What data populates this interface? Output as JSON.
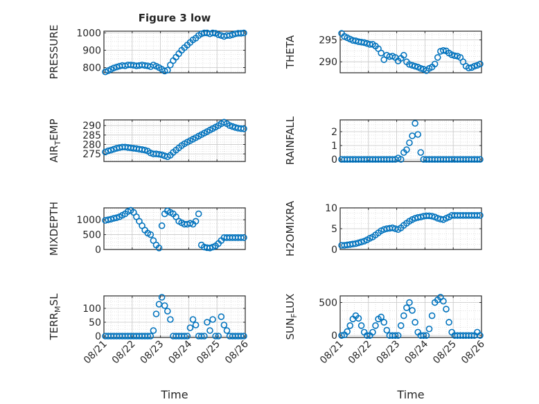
{
  "title": "Figure 3 low",
  "colors": {
    "marker": "#0072BD",
    "axis": "#262626",
    "grid": "#d9d9d9"
  },
  "chart_data": [
    {
      "type": "scatter",
      "ylabel": "PRESSURE",
      "xlabel": "",
      "xlim": [
        0,
        5
      ],
      "ylim": [
        770,
        1010
      ],
      "yticks": [
        800,
        900,
        1000
      ],
      "xticks": [],
      "x": [
        0.05,
        0.15,
        0.25,
        0.35,
        0.45,
        0.55,
        0.65,
        0.75,
        0.85,
        0.95,
        1.05,
        1.15,
        1.25,
        1.35,
        1.45,
        1.55,
        1.65,
        1.75,
        1.85,
        1.95,
        2.05,
        2.15,
        2.25,
        2.35,
        2.45,
        2.55,
        2.65,
        2.75,
        2.85,
        2.95,
        3.05,
        3.15,
        3.25,
        3.35,
        3.45,
        3.55,
        3.65,
        3.75,
        3.85,
        3.95,
        4.05,
        4.15,
        4.25,
        4.35,
        4.45,
        4.55,
        4.65,
        4.75,
        4.85,
        4.95
      ],
      "y": [
        775,
        782,
        790,
        798,
        803,
        808,
        812,
        810,
        815,
        815,
        813,
        810,
        812,
        815,
        812,
        810,
        805,
        815,
        808,
        800,
        790,
        780,
        785,
        815,
        840,
        860,
        880,
        900,
        915,
        930,
        945,
        960,
        970,
        985,
        995,
        1000,
        1000,
        995,
        1000,
        998,
        990,
        985,
        980,
        985,
        985,
        990,
        995,
        998,
        998,
        1000
      ]
    },
    {
      "type": "scatter",
      "ylabel": "THETA",
      "xlabel": "",
      "xlim": [
        0,
        5
      ],
      "ylim": [
        287.5,
        297
      ],
      "yticks": [
        290,
        295
      ],
      "xticks": [],
      "x": [
        0.05,
        0.15,
        0.25,
        0.35,
        0.45,
        0.55,
        0.65,
        0.75,
        0.85,
        0.95,
        1.05,
        1.15,
        1.25,
        1.35,
        1.45,
        1.55,
        1.65,
        1.75,
        1.85,
        1.95,
        2.05,
        2.15,
        2.25,
        2.35,
        2.45,
        2.55,
        2.65,
        2.75,
        2.85,
        2.95,
        3.05,
        3.15,
        3.25,
        3.35,
        3.45,
        3.55,
        3.65,
        3.75,
        3.85,
        3.95,
        4.05,
        4.15,
        4.25,
        4.35,
        4.45,
        4.55,
        4.65,
        4.75,
        4.85,
        4.95
      ],
      "y": [
        296.5,
        295.8,
        295.5,
        295.2,
        294.9,
        294.8,
        294.6,
        294.5,
        294.4,
        294.2,
        294,
        294,
        293.6,
        293,
        292,
        290.5,
        291.5,
        291.2,
        291.3,
        291,
        290.2,
        290.8,
        291.5,
        290,
        289.4,
        289.2,
        289,
        288.8,
        288.5,
        288.3,
        288,
        288.5,
        288.8,
        289.5,
        291,
        292.4,
        292.6,
        292.5,
        292,
        291.6,
        291.4,
        291.3,
        291,
        290,
        289,
        288.6,
        288.7,
        289,
        289.2,
        289.5
      ]
    },
    {
      "type": "scatter",
      "ylabel": "AIR_TEMP",
      "xlabel": "",
      "xlim": [
        0,
        5
      ],
      "ylim": [
        271,
        293
      ],
      "yticks": [
        275,
        280,
        285,
        290
      ],
      "xticks": [],
      "x": [
        0.05,
        0.15,
        0.25,
        0.35,
        0.45,
        0.55,
        0.65,
        0.75,
        0.85,
        0.95,
        1.05,
        1.15,
        1.25,
        1.35,
        1.45,
        1.55,
        1.65,
        1.75,
        1.85,
        1.95,
        2.05,
        2.15,
        2.25,
        2.35,
        2.45,
        2.55,
        2.65,
        2.75,
        2.85,
        2.95,
        3.05,
        3.15,
        3.25,
        3.35,
        3.45,
        3.55,
        3.65,
        3.75,
        3.85,
        3.95,
        4.05,
        4.15,
        4.25,
        4.35,
        4.45,
        4.55,
        4.65,
        4.75,
        4.85,
        4.95
      ],
      "y": [
        276,
        276.6,
        277,
        277.5,
        278,
        278.3,
        278.6,
        278.6,
        278.4,
        278.2,
        278,
        277.8,
        277.5,
        277.3,
        277,
        276.5,
        275.5,
        275,
        275,
        274.8,
        274.5,
        274,
        273.5,
        274.3,
        275.8,
        277,
        278.2,
        279.4,
        280.4,
        281.2,
        282,
        282.8,
        283.6,
        284.4,
        285.2,
        286,
        286.8,
        287.6,
        288.4,
        289.2,
        290,
        291,
        291.8,
        291,
        290,
        289.5,
        289,
        288.6,
        288.4,
        288.3
      ]
    },
    {
      "type": "scatter",
      "ylabel": "RAINFALL",
      "xlabel": "",
      "xlim": [
        0,
        5
      ],
      "ylim": [
        -0.15,
        2.85
      ],
      "yticks": [
        0,
        1,
        2
      ],
      "xticks": [],
      "x": [
        0.05,
        0.15,
        0.25,
        0.35,
        0.45,
        0.55,
        0.65,
        0.75,
        0.85,
        0.95,
        1.05,
        1.15,
        1.25,
        1.35,
        1.45,
        1.55,
        1.65,
        1.75,
        1.85,
        1.95,
        2.05,
        2.15,
        2.25,
        2.35,
        2.45,
        2.55,
        2.65,
        2.75,
        2.85,
        2.95,
        3.05,
        3.15,
        3.25,
        3.35,
        3.45,
        3.55,
        3.65,
        3.75,
        3.85,
        3.95,
        4.05,
        4.15,
        4.25,
        4.35,
        4.45,
        4.55,
        4.65,
        4.75,
        4.85,
        4.95
      ],
      "y": [
        0,
        0,
        0,
        0,
        0,
        0,
        0,
        0,
        0,
        0,
        0,
        0,
        0,
        0,
        0,
        0,
        0,
        0,
        0,
        0,
        0.1,
        0,
        0.5,
        0.7,
        1.2,
        1.7,
        2.6,
        1.8,
        0.5,
        0,
        0,
        0,
        0,
        0,
        0,
        0,
        0,
        0,
        0,
        0,
        0,
        0,
        0,
        0,
        0,
        0,
        0,
        0,
        0,
        0
      ]
    },
    {
      "type": "scatter",
      "ylabel": "MIXDEPTH",
      "xlabel": "",
      "xlim": [
        0,
        5
      ],
      "ylim": [
        0,
        1400
      ],
      "yticks": [
        0,
        500,
        1000
      ],
      "xticks": [],
      "x": [
        0.05,
        0.15,
        0.25,
        0.35,
        0.45,
        0.55,
        0.65,
        0.75,
        0.85,
        0.95,
        1.05,
        1.15,
        1.25,
        1.35,
        1.45,
        1.55,
        1.65,
        1.75,
        1.85,
        1.95,
        2.05,
        2.15,
        2.25,
        2.35,
        2.45,
        2.55,
        2.65,
        2.75,
        2.85,
        2.95,
        3.05,
        3.15,
        3.25,
        3.35,
        3.45,
        3.55,
        3.65,
        3.75,
        3.85,
        3.95,
        4.05,
        4.15,
        4.25,
        4.35,
        4.45,
        4.55,
        4.65,
        4.75,
        4.85,
        4.95
      ],
      "y": [
        980,
        1000,
        1020,
        1050,
        1070,
        1100,
        1150,
        1200,
        1280,
        1320,
        1250,
        1100,
        950,
        800,
        650,
        550,
        500,
        300,
        150,
        50,
        800,
        1200,
        1300,
        1250,
        1200,
        1100,
        950,
        900,
        850,
        850,
        880,
        850,
        950,
        1200,
        150,
        80,
        60,
        50,
        80,
        120,
        200,
        300,
        400,
        400,
        400,
        400,
        400,
        400,
        400,
        400
      ]
    },
    {
      "type": "scatter",
      "ylabel": "H2OMIXRA",
      "xlabel": "",
      "xlim": [
        0,
        5
      ],
      "ylim": [
        0,
        10
      ],
      "yticks": [
        0,
        5,
        10
      ],
      "xticks": [],
      "x": [
        0.05,
        0.15,
        0.25,
        0.35,
        0.45,
        0.55,
        0.65,
        0.75,
        0.85,
        0.95,
        1.05,
        1.15,
        1.25,
        1.35,
        1.45,
        1.55,
        1.65,
        1.75,
        1.85,
        1.95,
        2.05,
        2.15,
        2.25,
        2.35,
        2.45,
        2.55,
        2.65,
        2.75,
        2.85,
        2.95,
        3.05,
        3.15,
        3.25,
        3.35,
        3.45,
        3.55,
        3.65,
        3.75,
        3.85,
        3.95,
        4.05,
        4.15,
        4.25,
        4.35,
        4.45,
        4.55,
        4.65,
        4.75,
        4.85,
        4.95
      ],
      "y": [
        1,
        1,
        1.1,
        1.2,
        1.3,
        1.4,
        1.6,
        1.8,
        2,
        2.3,
        2.7,
        3,
        3.5,
        4,
        4.5,
        4.8,
        5,
        5.1,
        5.2,
        5,
        4.8,
        5.2,
        5.8,
        6.3,
        6.8,
        7.2,
        7.5,
        7.7,
        7.8,
        8,
        8.1,
        8.1,
        8,
        7.8,
        7.5,
        7.3,
        7.2,
        7.5,
        7.8,
        8.2,
        8.2,
        8.2,
        8.2,
        8.2,
        8.2,
        8.2,
        8.2,
        8.2,
        8.2,
        8.2
      ]
    },
    {
      "type": "scatter",
      "ylabel": "TERR_MSL",
      "xlabel": "Time",
      "xlim": [
        0,
        5
      ],
      "ylim": [
        -5,
        145
      ],
      "yticks": [
        0,
        50,
        100
      ],
      "xticks": [
        "08/21",
        "08/22",
        "08/23",
        "08/24",
        "08/25",
        "08/26"
      ],
      "x": [
        0.05,
        0.15,
        0.25,
        0.35,
        0.45,
        0.55,
        0.65,
        0.75,
        0.85,
        0.95,
        1.05,
        1.15,
        1.25,
        1.35,
        1.45,
        1.55,
        1.65,
        1.75,
        1.85,
        1.95,
        2.05,
        2.15,
        2.25,
        2.35,
        2.45,
        2.55,
        2.65,
        2.75,
        2.85,
        2.95,
        3.05,
        3.15,
        3.25,
        3.35,
        3.45,
        3.55,
        3.65,
        3.75,
        3.85,
        3.95,
        4.05,
        4.15,
        4.25,
        4.35,
        4.45,
        4.55,
        4.65,
        4.75,
        4.85,
        4.95
      ],
      "y": [
        0,
        0,
        0,
        0,
        0,
        0,
        0,
        0,
        0,
        0,
        0,
        0,
        0,
        0,
        0,
        0,
        0,
        20,
        80,
        115,
        140,
        110,
        90,
        60,
        0,
        0,
        0,
        0,
        0,
        0,
        30,
        60,
        40,
        0,
        0,
        0,
        50,
        20,
        60,
        0,
        0,
        70,
        40,
        20,
        0,
        0,
        0,
        0,
        0,
        0
      ]
    },
    {
      "type": "scatter",
      "ylabel": "SUN_FLUX",
      "xlabel": "Time",
      "xlim": [
        0,
        5
      ],
      "ylim": [
        -30,
        600
      ],
      "yticks": [
        0,
        500
      ],
      "xticks": [
        "08/21",
        "08/22",
        "08/23",
        "08/24",
        "08/25",
        "08/26"
      ],
      "x": [
        0.05,
        0.15,
        0.25,
        0.35,
        0.45,
        0.55,
        0.65,
        0.75,
        0.85,
        0.95,
        1.05,
        1.15,
        1.25,
        1.35,
        1.45,
        1.55,
        1.65,
        1.75,
        1.85,
        1.95,
        2.05,
        2.15,
        2.25,
        2.35,
        2.45,
        2.55,
        2.65,
        2.75,
        2.85,
        2.95,
        3.05,
        3.15,
        3.25,
        3.35,
        3.45,
        3.55,
        3.65,
        3.75,
        3.85,
        3.95,
        4.05,
        4.15,
        4.25,
        4.35,
        4.45,
        4.55,
        4.65,
        4.75,
        4.85,
        4.95
      ],
      "y": [
        0,
        10,
        60,
        150,
        250,
        300,
        260,
        150,
        50,
        0,
        0,
        50,
        150,
        250,
        280,
        200,
        80,
        0,
        0,
        0,
        0,
        150,
        300,
        420,
        500,
        380,
        200,
        50,
        0,
        0,
        0,
        100,
        300,
        500,
        540,
        580,
        520,
        400,
        200,
        50,
        0,
        0,
        0,
        0,
        0,
        0,
        0,
        0,
        50,
        0
      ]
    }
  ]
}
